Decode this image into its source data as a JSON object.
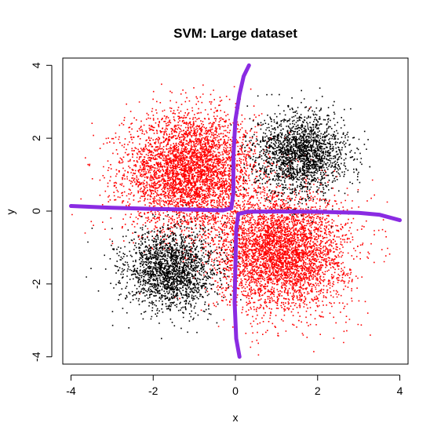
{
  "chart_data": {
    "type": "scatter",
    "title": "SVM: Large dataset",
    "xlabel": "x",
    "ylabel": "y",
    "xlim": [
      -4.2,
      4.2
    ],
    "ylim": [
      -4.2,
      4.2
    ],
    "x_ticks": [
      "-4",
      "-2",
      "0",
      "2",
      "4"
    ],
    "y_ticks": [
      "-4",
      "-2",
      "0",
      "2",
      "4"
    ],
    "grid": false,
    "legend": "none",
    "series": [
      {
        "color": "#ff0000",
        "clusters": [
          {
            "center": [
              -1.1,
              1.1
            ],
            "sd": 0.8,
            "n": 4200
          },
          {
            "center": [
              1.1,
              -1.1
            ],
            "sd": 0.8,
            "n": 4200
          }
        ]
      },
      {
        "color": "#000000",
        "clusters": [
          {
            "center": [
              1.6,
              1.6
            ],
            "sd": 0.55,
            "n": 2000
          },
          {
            "center": [
              -1.6,
              -1.6
            ],
            "sd": 0.55,
            "n": 2000
          }
        ]
      }
    ],
    "decision_boundary": {
      "color": "#8a2be2",
      "segments": [
        [
          [
            -4.0,
            0.14
          ],
          [
            -3.0,
            0.09
          ],
          [
            -2.0,
            0.06
          ],
          [
            -1.0,
            0.04
          ],
          [
            -0.3,
            0.02
          ],
          [
            -0.1,
            0.08
          ],
          [
            -0.05,
            0.5
          ],
          [
            -0.05,
            1.5
          ],
          [
            0.0,
            2.5
          ],
          [
            0.1,
            3.2
          ],
          [
            0.2,
            3.7
          ],
          [
            0.33,
            4.0
          ]
        ],
        [
          [
            0.1,
            -4.0
          ],
          [
            0.02,
            -3.5
          ],
          [
            -0.02,
            -2.5
          ],
          [
            0.0,
            -1.5
          ],
          [
            0.02,
            -0.5
          ],
          [
            0.07,
            -0.08
          ],
          [
            0.3,
            -0.02
          ],
          [
            1.0,
            -0.01
          ],
          [
            2.0,
            -0.02
          ],
          [
            3.0,
            -0.05
          ],
          [
            3.5,
            -0.1
          ],
          [
            4.0,
            -0.25
          ]
        ]
      ]
    }
  }
}
